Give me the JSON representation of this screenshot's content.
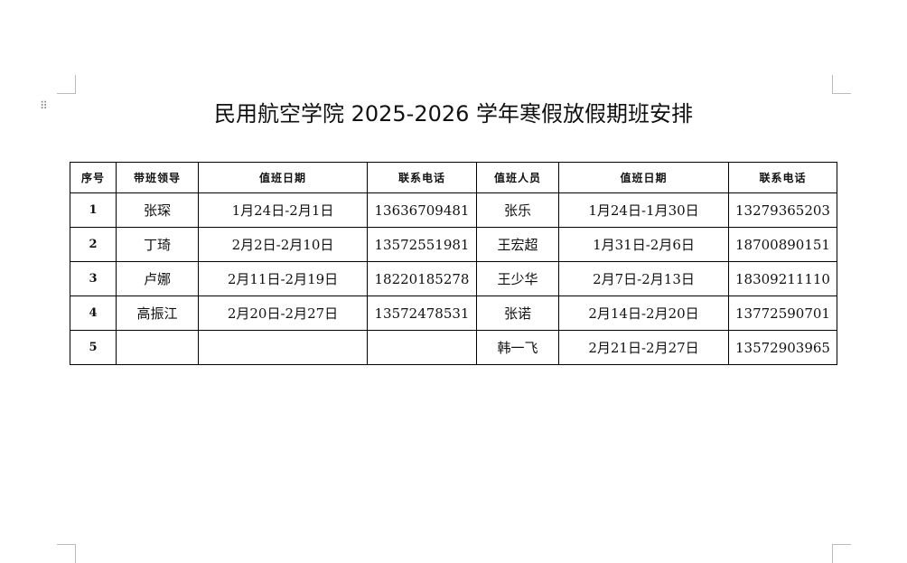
{
  "title": "民用航空学院 2025-2026 学年寒假放假期班安排",
  "headers": [
    "序号",
    "带班领导",
    "值班日期",
    "联系电话",
    "值班人员",
    "值班日期",
    "联系电话"
  ],
  "rows": [
    [
      "1",
      "张琛",
      "1月24日-2月1日",
      "13636709481",
      "张乐",
      "1月24日-1月30日",
      "13279365203"
    ],
    [
      "2",
      "丁琦",
      "2月2日-2月10日",
      "13572551981",
      "王宏超",
      "1月31日-2月6日",
      "18700890151"
    ],
    [
      "3",
      "卢娜",
      "2月11日-2月19日",
      "18220185278",
      "王少华",
      "2月7日-2月13日",
      "18309211110"
    ],
    [
      "4",
      "高振江",
      "2月20日-2月27日",
      "13572478531",
      "张诺",
      "2月14日-2月20日",
      "13772590701"
    ],
    [
      "5",
      "",
      "",
      "",
      "韩一飞",
      "2月21日-2月27日",
      "13572903965"
    ]
  ]
}
